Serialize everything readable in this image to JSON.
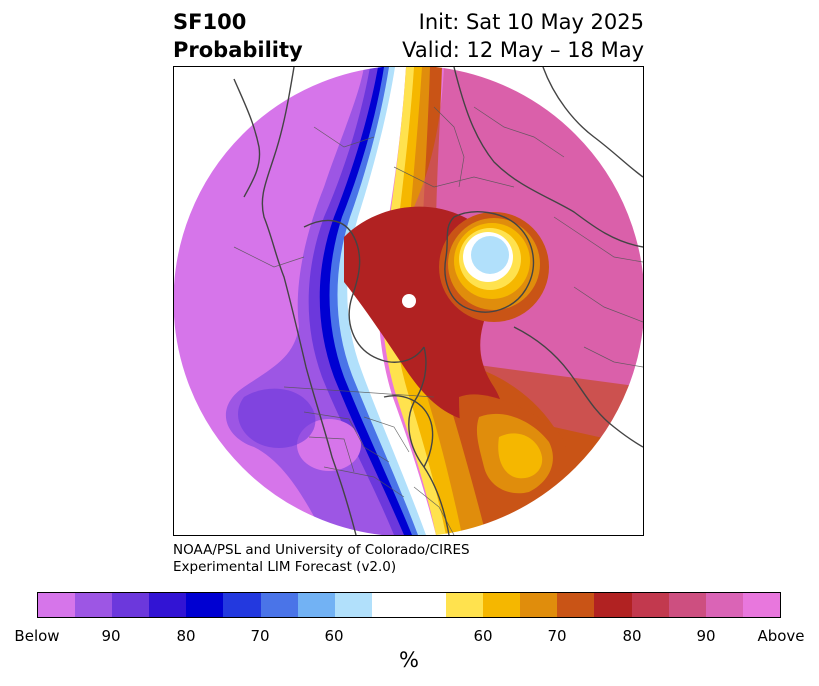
{
  "title": {
    "variable": "SF100",
    "subtitle": "Probability",
    "init": "Init: Sat 10 May 2025",
    "valid": "Valid: 12 May – 18 May"
  },
  "credit": {
    "line1": "NOAA/PSL and University of Colorado/CIRES",
    "line2": "Experimental LIM Forecast (v2.0)"
  },
  "colorbar": {
    "colors": [
      "#d675ea",
      "#9d56e4",
      "#6c38dc",
      "#3214d4",
      "#0000d2",
      "#2339df",
      "#4a74e8",
      "#72b2f4",
      "#b1e0fb",
      "#ffffff",
      "#ffffff",
      "#ffe24e",
      "#f5b700",
      "#e08d0c",
      "#c95416",
      "#b12222",
      "#c2394e",
      "#cd4f80",
      "#da64b6",
      "#e877dd"
    ],
    "labels": [
      "Below",
      "90",
      "80",
      "70",
      "60",
      "60",
      "70",
      "80",
      "90",
      "Above"
    ],
    "unit": "%"
  },
  "map": {
    "projection": "north polar stereographic",
    "field": "SF100 probability",
    "pole_marker": "white dot"
  }
}
